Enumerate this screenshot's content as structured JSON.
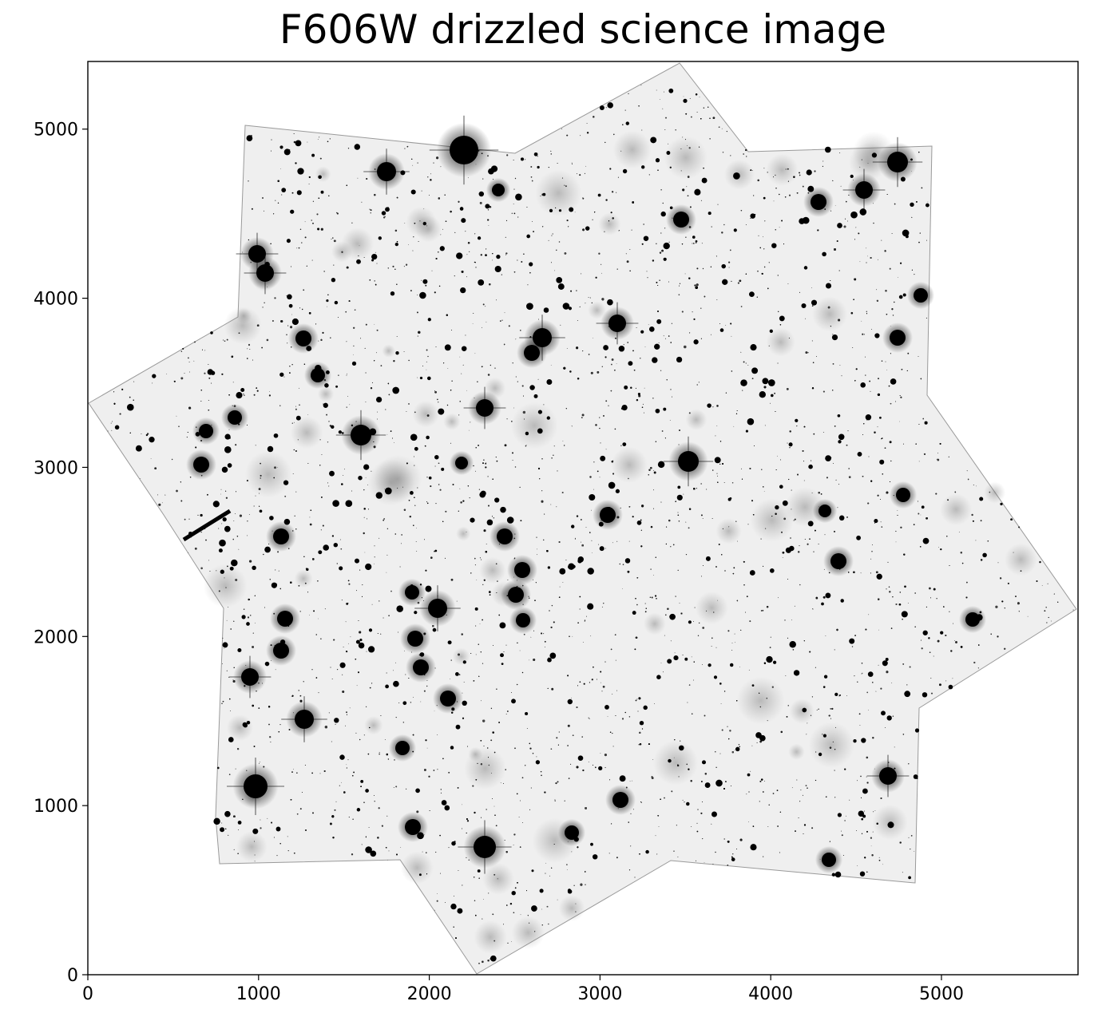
{
  "figure": {
    "title": "F606W drizzled science image",
    "x_axis": {
      "range": [
        0,
        5800
      ],
      "ticks": [
        0,
        1000,
        2000,
        3000,
        4000,
        5000
      ]
    },
    "y_axis": {
      "range": [
        0,
        5400
      ],
      "ticks": [
        0,
        1000,
        2000,
        3000,
        4000,
        5000
      ]
    },
    "colormap": "gray_r",
    "background_color": "#ffffff",
    "frame_color": "#000000",
    "field_fill": "#efefef"
  }
}
